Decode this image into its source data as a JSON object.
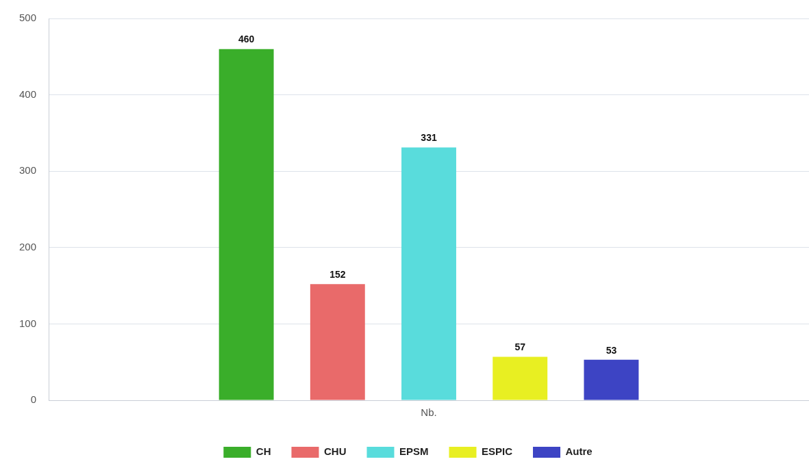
{
  "chart_data": {
    "type": "bar",
    "categories": [
      "Nb."
    ],
    "series": [
      {
        "name": "CH",
        "color": "#3aae2a",
        "values": [
          460
        ]
      },
      {
        "name": "CHU",
        "color": "#e96a6a",
        "values": [
          152
        ]
      },
      {
        "name": "EPSM",
        "color": "#59dcdc",
        "values": [
          331
        ]
      },
      {
        "name": "ESPIC",
        "color": "#e8ef22",
        "values": [
          57
        ]
      },
      {
        "name": "Autre",
        "color": "#3d44c4",
        "values": [
          53
        ]
      }
    ],
    "ylim": [
      0,
      500
    ],
    "yticks": [
      0,
      100,
      200,
      300,
      400,
      500
    ],
    "grid": "y",
    "legend": "bottom",
    "data_labels": true
  }
}
